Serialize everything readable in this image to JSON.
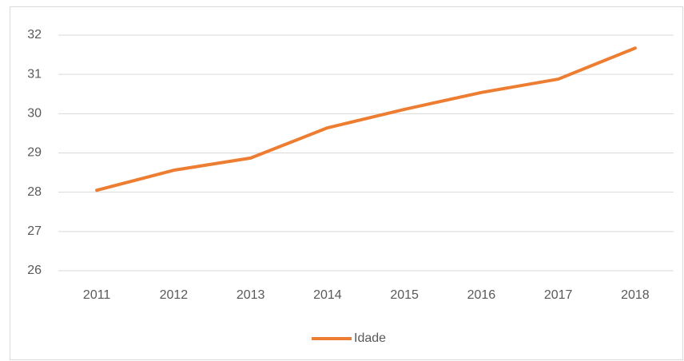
{
  "chart_data": {
    "type": "line",
    "categories": [
      "2011",
      "2012",
      "2013",
      "2014",
      "2015",
      "2016",
      "2017",
      "2018"
    ],
    "series": [
      {
        "name": "Idade",
        "color": "#ed7d31",
        "values": [
          28.05,
          28.56,
          28.87,
          29.64,
          30.11,
          30.54,
          30.88,
          31.67
        ]
      }
    ],
    "ylim": [
      26,
      32
    ],
    "yticks": [
      26,
      27,
      28,
      29,
      30,
      31,
      32
    ],
    "grid": true,
    "legend": "bottom"
  }
}
